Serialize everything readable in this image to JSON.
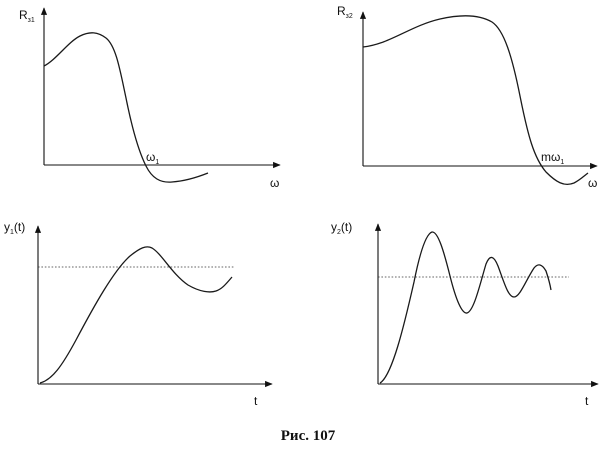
{
  "panels": {
    "r1": {
      "ylabel": "R",
      "ysub": "з1",
      "xlabel": "ω",
      "mark": "ω",
      "mark_sub": "1"
    },
    "r2": {
      "ylabel": "R",
      "ysub": "з2",
      "xlabel": "ω",
      "mark": "mω",
      "mark_sub": "1"
    },
    "y1": {
      "ylabel_pre": "y",
      "ysub": "1",
      "ylabel_post": "(t)",
      "xlabel": "t"
    },
    "y2": {
      "ylabel_pre": "y",
      "ysub": "2",
      "ylabel_post": "(t)",
      "xlabel": "t"
    }
  },
  "caption": "Рис. 107"
}
